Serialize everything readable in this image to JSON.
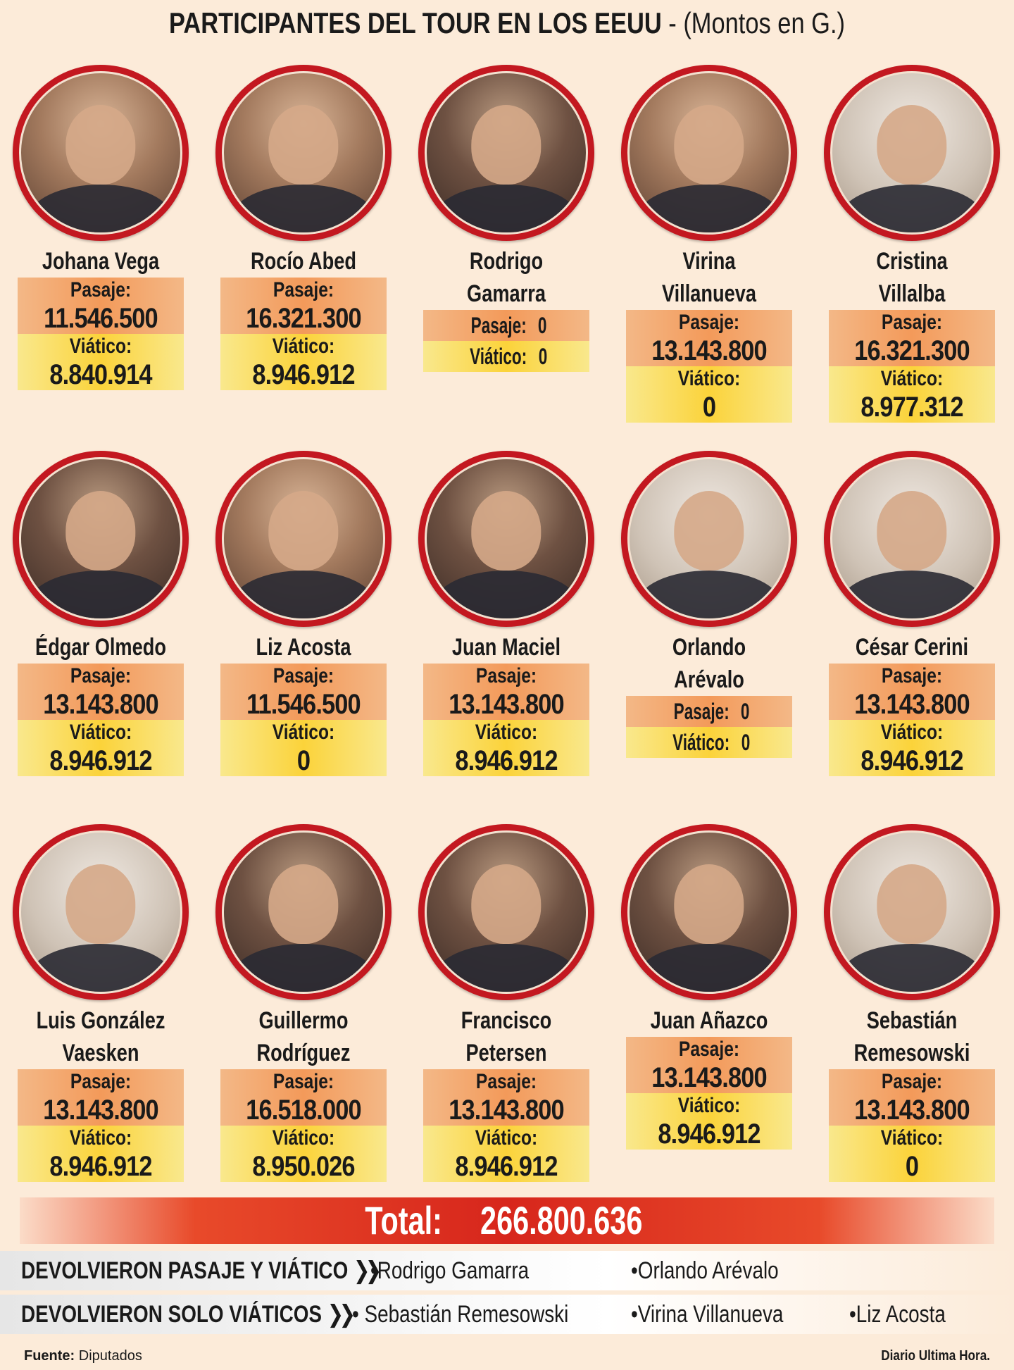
{
  "title": {
    "main": "PARTICIPANTES DEL TOUR EN LOS EEUU",
    "sub": "- (Montos en G.)"
  },
  "participants": [
    {
      "name": [
        "Johana Vega"
      ],
      "pasaje_label": "Pasaje:",
      "pasaje": "11.546.500",
      "viatico_label": "Viático:",
      "viatico": "8.840.914"
    },
    {
      "name": [
        "Rocío Abed"
      ],
      "pasaje_label": "Pasaje:",
      "pasaje": "16.321.300",
      "viatico_label": "Viático:",
      "viatico": "8.946.912"
    },
    {
      "name": [
        "Rodrigo",
        "Gamarra"
      ],
      "pasaje_label": "Pasaje:",
      "pasaje": "0",
      "viatico_label": "Viático:",
      "viatico": "0"
    },
    {
      "name": [
        "Virina",
        "Villanueva"
      ],
      "pasaje_label": "Pasaje:",
      "pasaje": "13.143.800",
      "viatico_label": "Viático:",
      "viatico": "0"
    },
    {
      "name": [
        "Cristina",
        "Villalba"
      ],
      "pasaje_label": "Pasaje:",
      "pasaje": "16.321.300",
      "viatico_label": "Viático:",
      "viatico": "8.977.312"
    },
    {
      "name": [
        "Édgar Olmedo"
      ],
      "pasaje_label": "Pasaje:",
      "pasaje": "13.143.800",
      "viatico_label": "Viático:",
      "viatico": "8.946.912"
    },
    {
      "name": [
        "Liz Acosta"
      ],
      "pasaje_label": "Pasaje:",
      "pasaje": "11.546.500",
      "viatico_label": "Viático:",
      "viatico": "0"
    },
    {
      "name": [
        "Juan Maciel"
      ],
      "pasaje_label": "Pasaje:",
      "pasaje": "13.143.800",
      "viatico_label": "Viático:",
      "viatico": "8.946.912"
    },
    {
      "name": [
        "Orlando",
        "Arévalo"
      ],
      "pasaje_label": "Pasaje:",
      "pasaje": "0",
      "viatico_label": "Viático:",
      "viatico": "0"
    },
    {
      "name": [
        "César Cerini"
      ],
      "pasaje_label": "Pasaje:",
      "pasaje": "13.143.800",
      "viatico_label": "Viático:",
      "viatico": "8.946.912"
    },
    {
      "name": [
        "Luis González",
        "Vaesken"
      ],
      "pasaje_label": "Pasaje:",
      "pasaje": "13.143.800",
      "viatico_label": "Viático:",
      "viatico": "8.946.912"
    },
    {
      "name": [
        "Guillermo",
        "Rodríguez"
      ],
      "pasaje_label": "Pasaje:",
      "pasaje": "16.518.000",
      "viatico_label": "Viático:",
      "viatico": "8.950.026"
    },
    {
      "name": [
        "Francisco",
        "Petersen"
      ],
      "pasaje_label": "Pasaje:",
      "pasaje": "13.143.800",
      "viatico_label": "Viático:",
      "viatico": "8.946.912"
    },
    {
      "name": [
        "Juan Añazco"
      ],
      "pasaje_label": "Pasaje:",
      "pasaje": "13.143.800",
      "viatico_label": "Viático:",
      "viatico": "8.946.912"
    },
    {
      "name": [
        "Sebastián",
        "Remesowski"
      ],
      "pasaje_label": "Pasaje:",
      "pasaje": "13.143.800",
      "viatico_label": "Viático:",
      "viatico": "0"
    }
  ],
  "total": {
    "label": "Total:",
    "value": "266.800.636"
  },
  "returned_both": {
    "label": "DEVOLVIERON PASAJE Y VIÁTICO",
    "items": [
      "•Rodrigo Gamarra",
      "•Orlando Arévalo"
    ]
  },
  "returned_viaticos": {
    "label": "DEVOLVIERON SOLO VIÁTICOS",
    "items": [
      "• Sebastián  Remesowski",
      "•Virina Villanueva",
      "•Liz Acosta"
    ]
  },
  "footer": {
    "source_label": "Fuente:",
    "source": "Diputados",
    "credit": "Diario Ultima Hora."
  },
  "colors": {
    "accent_red": "#c31820",
    "pasaje_band": "#f39a5a",
    "viatico_band": "#fbd33a",
    "background": "#fcebd9"
  }
}
